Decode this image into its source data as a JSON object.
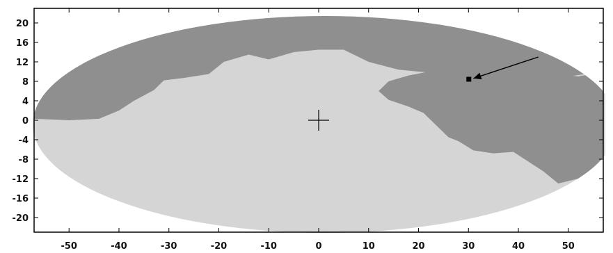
{
  "chart_data": {
    "type": "heatmap",
    "title": "",
    "xlabel": "",
    "ylabel": "",
    "xlim": [
      -57,
      57
    ],
    "ylim": [
      -23,
      23
    ],
    "x_ticks": [
      "-50",
      "-40",
      "-30",
      "-20",
      "-10",
      "0",
      "10",
      "20",
      "30",
      "40",
      "50"
    ],
    "y_ticks": [
      "20",
      "16",
      "12",
      "8",
      "4",
      "0",
      "-4",
      "-8",
      "-12",
      "-16",
      "-20"
    ],
    "projection": "elliptical sky map",
    "regions": [
      {
        "name": "",
        "color": "#d5d5d5"
      },
      {
        "name": "",
        "color": "#8f8f8f"
      }
    ],
    "center_marker": {
      "x": 0,
      "y": 0,
      "symbol": "+"
    },
    "highlighted_pixel": {
      "x": 30,
      "y": 8.5,
      "color": "#000000"
    },
    "arrow": {
      "from": [
        44,
        13
      ],
      "to": [
        31,
        8.6
      ]
    },
    "grid": false,
    "legend": "none"
  },
  "colors": {
    "background": "#ffffff",
    "light_region": "#d5d5d5",
    "dark_region": "#8f8f8f",
    "frame": "#000000"
  }
}
